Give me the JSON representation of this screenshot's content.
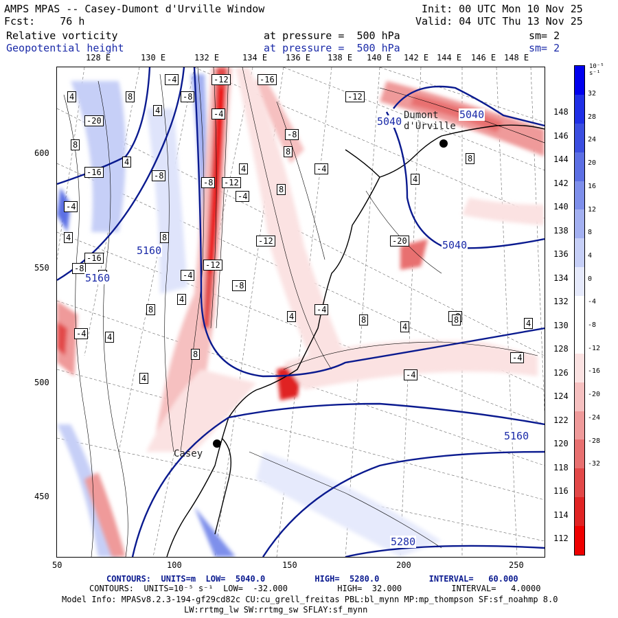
{
  "header": {
    "line1_left": "AMPS MPAS -- Casey-Dumont d'Urville Window",
    "line1_right": "Init: 00 UTC Mon 10 Nov 25",
    "line2_left": "Fcst:    76 h",
    "line2_right": "Valid: 04 UTC Thu 13 Nov 25",
    "field1_name": "Relative vorticity",
    "field1_level": "at pressure =  500 hPa",
    "field1_sm": "sm= 2",
    "field2_name": "Geopotential height",
    "field2_level": "at pressure =  500 hPa",
    "field2_sm": "sm= 2"
  },
  "axes": {
    "top_lon": [
      "128 E",
      "130 E",
      "132 E",
      "134 E",
      "136 E",
      "138 E",
      "140 E",
      "142 E",
      "144 E",
      "146 E",
      "148 E"
    ],
    "right_lon": [
      "148 E",
      "146 E",
      "144 E",
      "142 E",
      "140 E",
      "138 E",
      "136 E",
      "134 E",
      "132 E",
      "130 E",
      "128 E",
      "126 E",
      "124 E",
      "122 E",
      "120 E",
      "118 E",
      "116 E",
      "114 E",
      "112 E"
    ],
    "left_y": [
      "600",
      "550",
      "500",
      "450"
    ],
    "bottom_x": [
      "50",
      "100",
      "150",
      "200",
      "250"
    ]
  },
  "colorbar": {
    "unit": "10⁻⁵ s⁻¹",
    "ticks": [
      "32",
      "28",
      "24",
      "20",
      "16",
      "12",
      "8",
      "4",
      "0",
      "-4",
      "-8",
      "-12",
      "-16",
      "-20",
      "-24",
      "-28",
      "-32"
    ],
    "colors": [
      "#0000ee",
      "#1f2fe6",
      "#3b4ee0",
      "#5c6fe4",
      "#7e8feb",
      "#a3b0f1",
      "#c6cff7",
      "#e6eafc",
      "#ffffff",
      "#ffffff",
      "#fbe2e2",
      "#f6c0c0",
      "#ef9a9a",
      "#e87070",
      "#e24848",
      "#e02424",
      "#ee0000"
    ]
  },
  "map_labels": {
    "stations": [
      "Dumont d'Urville",
      "Casey"
    ],
    "height_contours": [
      "5040",
      "5040",
      "5040",
      "5160",
      "5160",
      "5160",
      "5280"
    ],
    "vort_labels": [
      "4",
      "8",
      "-4",
      "-8",
      "-12",
      "-16",
      "-20",
      "4",
      "8",
      "-4",
      "-8",
      "-12",
      "-16",
      "4",
      "8",
      "-4",
      "-8",
      "-12",
      "4",
      "8",
      "-4",
      "-8",
      "4",
      "8",
      "-4",
      "-8",
      "-12",
      "-16",
      "-20",
      "4",
      "8",
      "-4",
      "-8",
      "-12",
      "4",
      "8",
      "-4",
      "-8",
      "4",
      "8",
      "-4",
      "4",
      "8",
      "4",
      "8",
      "-4",
      "-4",
      "4",
      "8",
      "4"
    ]
  },
  "footer": {
    "line1": "CONTOURS:  UNITS=m  LOW=  5040.0          HIGH=  5280.0          INTERVAL=   60.000",
    "line2": "CONTOURS:  UNITS=10⁻⁵ s⁻¹  LOW=  -32.000          HIGH=  32.000          INTERVAL=   4.0000",
    "line3": "Model Info: MPASv8.2.3-194-gf29cd82c CU:cu_grell_freitas PBL:bl_mynn MP:mp_thompson SF:sf_noahmp 8.0",
    "line4": "LW:rrtmg_lw SW:rrtmg_sw SFLAY:sf_mynn"
  }
}
